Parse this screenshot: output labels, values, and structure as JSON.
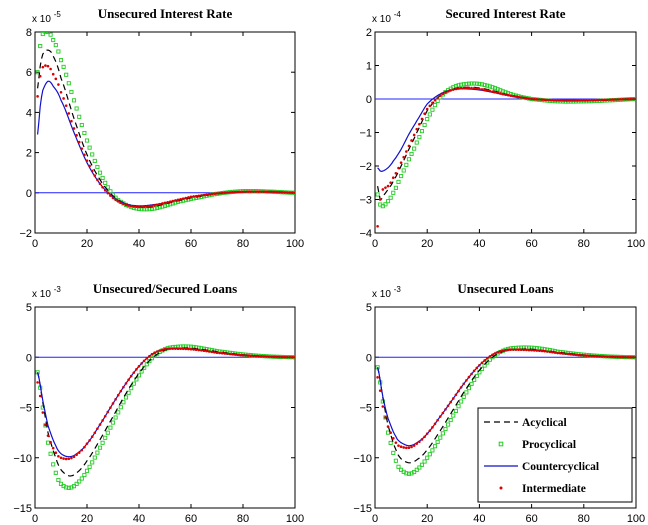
{
  "chart_data": [
    {
      "type": "line",
      "title": "Unsecured Interest Rate",
      "scale_label": "x 10",
      "scale_exponent": "-5",
      "xlim": [
        0,
        100
      ],
      "ylim": [
        -2,
        8
      ],
      "xticks": [
        0,
        20,
        40,
        60,
        80,
        100
      ],
      "yticks": [
        -2,
        0,
        2,
        4,
        6,
        8
      ],
      "xtick_labels": [
        "0",
        "20",
        "40",
        "60",
        "80",
        "100"
      ],
      "ytick_labels": [
        "−2",
        "0",
        "2",
        "4",
        "6",
        "8"
      ],
      "zero_line": true,
      "legend": false,
      "series": [
        {
          "name": "Acyclical",
          "x": [
            1,
            2,
            3,
            5,
            7,
            10,
            15,
            20,
            25,
            30,
            35,
            40,
            45,
            50,
            55,
            60,
            70,
            80,
            90,
            100
          ],
          "y": [
            5.2,
            6.3,
            6.9,
            7.1,
            6.8,
            5.7,
            3.7,
            1.9,
            0.65,
            -0.15,
            -0.55,
            -0.7,
            -0.7,
            -0.55,
            -0.4,
            -0.25,
            -0.05,
            0.05,
            0.05,
            0.0
          ]
        },
        {
          "name": "Procyclical",
          "x": [
            1,
            2,
            3,
            5,
            7,
            10,
            15,
            20,
            25,
            30,
            35,
            40,
            45,
            50,
            55,
            60,
            70,
            80,
            90,
            100
          ],
          "y": [
            6.0,
            7.3,
            7.9,
            8.0,
            7.6,
            6.6,
            4.6,
            2.6,
            1.0,
            -0.1,
            -0.6,
            -0.8,
            -0.8,
            -0.65,
            -0.45,
            -0.3,
            -0.05,
            0.08,
            0.06,
            0.0
          ]
        },
        {
          "name": "Countercyclical",
          "x": [
            1,
            2,
            3,
            5,
            7,
            10,
            15,
            20,
            25,
            30,
            35,
            40,
            45,
            50,
            55,
            60,
            70,
            80,
            90,
            100
          ],
          "y": [
            2.9,
            4.3,
            5.1,
            5.55,
            5.3,
            4.6,
            3.0,
            1.5,
            0.45,
            -0.2,
            -0.55,
            -0.65,
            -0.6,
            -0.5,
            -0.35,
            -0.2,
            -0.03,
            0.04,
            0.04,
            0.0
          ]
        },
        {
          "name": "Intermediate",
          "x": [
            1,
            2,
            3,
            5,
            7,
            10,
            15,
            20,
            25,
            30,
            35,
            40,
            45,
            50,
            55,
            60,
            70,
            80,
            90,
            100
          ],
          "y": [
            4.8,
            5.8,
            6.25,
            6.3,
            5.9,
            5.0,
            3.2,
            1.6,
            0.45,
            -0.25,
            -0.6,
            -0.7,
            -0.65,
            -0.5,
            -0.35,
            -0.2,
            -0.03,
            0.05,
            0.05,
            0.0
          ]
        }
      ]
    },
    {
      "type": "line",
      "title": "Secured Interest Rate",
      "scale_label": "x 10",
      "scale_exponent": "-4",
      "xlim": [
        0,
        100
      ],
      "ylim": [
        -4,
        2
      ],
      "xticks": [
        0,
        20,
        40,
        60,
        80,
        100
      ],
      "yticks": [
        -4,
        -3,
        -2,
        -1,
        0,
        1,
        2
      ],
      "xtick_labels": [
        "0",
        "20",
        "40",
        "60",
        "80",
        "100"
      ],
      "ytick_labels": [
        "−4",
        "−3",
        "−2",
        "−1",
        "0",
        "1",
        "2"
      ],
      "zero_line": true,
      "legend": false,
      "series": [
        {
          "name": "Acyclical",
          "x": [
            1,
            2,
            3,
            5,
            7,
            10,
            13,
            16,
            20,
            25,
            30,
            35,
            40,
            45,
            50,
            55,
            60,
            70,
            80,
            90,
            100
          ],
          "y": [
            -2.6,
            -3.0,
            -2.9,
            -2.7,
            -2.45,
            -2.0,
            -1.5,
            -1.0,
            -0.35,
            0.1,
            0.3,
            0.35,
            0.33,
            0.25,
            0.15,
            0.07,
            0.0,
            -0.05,
            -0.05,
            -0.03,
            0.0
          ]
        },
        {
          "name": "Procyclical",
          "x": [
            1,
            2,
            3,
            5,
            7,
            10,
            13,
            16,
            20,
            25,
            30,
            35,
            40,
            45,
            50,
            55,
            60,
            70,
            80,
            90,
            100
          ],
          "y": [
            -2.85,
            -3.15,
            -3.2,
            -3.05,
            -2.8,
            -2.3,
            -1.8,
            -1.3,
            -0.6,
            0.05,
            0.35,
            0.45,
            0.45,
            0.35,
            0.2,
            0.08,
            0.0,
            -0.07,
            -0.07,
            -0.04,
            0.0
          ]
        },
        {
          "name": "Countercyclical",
          "x": [
            1,
            2,
            3,
            5,
            7,
            10,
            13,
            16,
            20,
            25,
            30,
            35,
            40,
            45,
            50,
            55,
            60,
            70,
            80,
            90,
            100
          ],
          "y": [
            -2.05,
            -2.15,
            -2.15,
            -2.05,
            -1.85,
            -1.5,
            -1.05,
            -0.65,
            -0.15,
            0.15,
            0.28,
            0.3,
            0.27,
            0.2,
            0.12,
            0.05,
            0.0,
            -0.04,
            -0.04,
            -0.02,
            0.0
          ]
        },
        {
          "name": "Intermediate",
          "x": [
            1,
            2,
            3,
            5,
            7,
            10,
            13,
            16,
            20,
            25,
            30,
            35,
            40,
            45,
            50,
            55,
            60,
            70,
            80,
            90,
            100
          ],
          "y": [
            -3.8,
            -3.0,
            -2.7,
            -2.6,
            -2.35,
            -1.9,
            -1.4,
            -0.9,
            -0.3,
            0.1,
            0.28,
            0.33,
            0.3,
            0.22,
            0.13,
            0.06,
            0.0,
            -0.04,
            -0.04,
            -0.02,
            0.0
          ]
        }
      ]
    },
    {
      "type": "line",
      "title": "Unsecured/Secured Loans",
      "scale_label": "x 10",
      "scale_exponent": "-3",
      "xlim": [
        0,
        100
      ],
      "ylim": [
        -15,
        5
      ],
      "xticks": [
        0,
        20,
        40,
        60,
        80,
        100
      ],
      "yticks": [
        -15,
        -10,
        -5,
        0,
        5
      ],
      "xtick_labels": [
        "0",
        "20",
        "40",
        "60",
        "80",
        "100"
      ],
      "ytick_labels": [
        "−15",
        "−10",
        "−5",
        "0",
        "5"
      ],
      "zero_line": true,
      "legend": false,
      "series": [
        {
          "name": "Acyclical",
          "x": [
            1,
            3,
            5,
            8,
            10,
            13,
            16,
            20,
            25,
            30,
            35,
            40,
            45,
            50,
            55,
            60,
            65,
            70,
            80,
            90,
            100
          ],
          "y": [
            -1.5,
            -4.5,
            -7.5,
            -10.0,
            -11.2,
            -11.8,
            -11.5,
            -10.3,
            -8.2,
            -5.9,
            -3.6,
            -1.6,
            -0.1,
            0.7,
            0.9,
            0.9,
            0.75,
            0.55,
            0.25,
            0.08,
            0.0
          ]
        },
        {
          "name": "Procyclical",
          "x": [
            1,
            3,
            5,
            8,
            10,
            13,
            16,
            20,
            25,
            30,
            35,
            40,
            45,
            50,
            55,
            60,
            65,
            70,
            80,
            90,
            100
          ],
          "y": [
            -1.5,
            -5.0,
            -8.5,
            -11.5,
            -12.6,
            -13.0,
            -12.6,
            -11.3,
            -9.0,
            -6.5,
            -4.0,
            -1.8,
            -0.1,
            0.8,
            1.05,
            1.05,
            0.85,
            0.6,
            0.28,
            0.08,
            0.0
          ]
        },
        {
          "name": "Countercyclical",
          "x": [
            1,
            3,
            5,
            8,
            10,
            13,
            16,
            20,
            25,
            30,
            35,
            40,
            45,
            50,
            55,
            60,
            65,
            70,
            80,
            90,
            100
          ],
          "y": [
            -1.5,
            -4.3,
            -6.8,
            -8.8,
            -9.6,
            -9.9,
            -9.6,
            -8.6,
            -6.7,
            -4.6,
            -2.6,
            -0.9,
            0.3,
            0.8,
            0.85,
            0.8,
            0.65,
            0.45,
            0.2,
            0.06,
            0.0
          ]
        },
        {
          "name": "Intermediate",
          "x": [
            1,
            3,
            5,
            8,
            10,
            13,
            16,
            20,
            25,
            30,
            35,
            40,
            45,
            50,
            55,
            60,
            65,
            70,
            80,
            90,
            100
          ],
          "y": [
            -2.5,
            -5.5,
            -7.8,
            -9.5,
            -10.0,
            -10.1,
            -9.7,
            -8.6,
            -6.7,
            -4.6,
            -2.6,
            -0.9,
            0.3,
            0.8,
            0.85,
            0.8,
            0.65,
            0.45,
            0.2,
            0.06,
            0.0
          ]
        }
      ]
    },
    {
      "type": "line",
      "title": "Unsecured Loans",
      "scale_label": "x 10",
      "scale_exponent": "-3",
      "xlim": [
        0,
        100
      ],
      "ylim": [
        -15,
        5
      ],
      "xticks": [
        0,
        20,
        40,
        60,
        80,
        100
      ],
      "yticks": [
        -15,
        -10,
        -5,
        0,
        5
      ],
      "xtick_labels": [
        "0",
        "20",
        "40",
        "60",
        "80",
        "100"
      ],
      "ytick_labels": [
        "−15",
        "−10",
        "−5",
        "0",
        "5"
      ],
      "zero_line": true,
      "legend": true,
      "legend_position": "lower-right",
      "series": [
        {
          "name": "Acyclical",
          "x": [
            1,
            3,
            5,
            8,
            10,
            13,
            16,
            20,
            25,
            30,
            35,
            40,
            45,
            50,
            55,
            60,
            65,
            70,
            80,
            90,
            100
          ],
          "y": [
            -1.0,
            -4.0,
            -6.8,
            -9.2,
            -10.1,
            -10.5,
            -10.2,
            -9.2,
            -7.3,
            -5.2,
            -3.1,
            -1.3,
            0.0,
            0.65,
            0.8,
            0.8,
            0.65,
            0.5,
            0.22,
            0.07,
            0.0
          ]
        },
        {
          "name": "Procyclical",
          "x": [
            1,
            3,
            5,
            8,
            10,
            13,
            16,
            20,
            25,
            30,
            35,
            40,
            45,
            50,
            55,
            60,
            65,
            70,
            80,
            90,
            100
          ],
          "y": [
            -1.0,
            -4.4,
            -7.5,
            -10.3,
            -11.2,
            -11.6,
            -11.2,
            -10.0,
            -8.0,
            -5.8,
            -3.5,
            -1.5,
            0.0,
            0.75,
            0.95,
            0.95,
            0.8,
            0.55,
            0.25,
            0.07,
            0.0
          ]
        },
        {
          "name": "Countercyclical",
          "x": [
            1,
            3,
            5,
            8,
            10,
            13,
            16,
            20,
            25,
            30,
            35,
            40,
            45,
            50,
            55,
            60,
            65,
            70,
            80,
            90,
            100
          ],
          "y": [
            -1.0,
            -3.9,
            -6.1,
            -7.9,
            -8.5,
            -8.8,
            -8.5,
            -7.6,
            -5.9,
            -4.1,
            -2.3,
            -0.8,
            0.25,
            0.7,
            0.75,
            0.7,
            0.6,
            0.42,
            0.18,
            0.05,
            0.0
          ]
        },
        {
          "name": "Intermediate",
          "x": [
            1,
            3,
            5,
            8,
            10,
            13,
            16,
            20,
            25,
            30,
            35,
            40,
            45,
            50,
            55,
            60,
            65,
            70,
            80,
            90,
            100
          ],
          "y": [
            -2.0,
            -4.9,
            -6.9,
            -8.5,
            -8.9,
            -9.0,
            -8.6,
            -7.6,
            -5.9,
            -4.1,
            -2.3,
            -0.8,
            0.25,
            0.7,
            0.75,
            0.7,
            0.6,
            0.42,
            0.18,
            0.05,
            0.0
          ]
        }
      ]
    }
  ],
  "styles": {
    "Acyclical": {
      "color": "#000000",
      "kind": "dash"
    },
    "Procyclical": {
      "color": "#22cc22",
      "kind": "square"
    },
    "Countercyclical": {
      "color": "#1010cc",
      "kind": "solid"
    },
    "Intermediate": {
      "color": "#dd0000",
      "kind": "dot"
    },
    "zero_line_color": "#2020ff"
  }
}
